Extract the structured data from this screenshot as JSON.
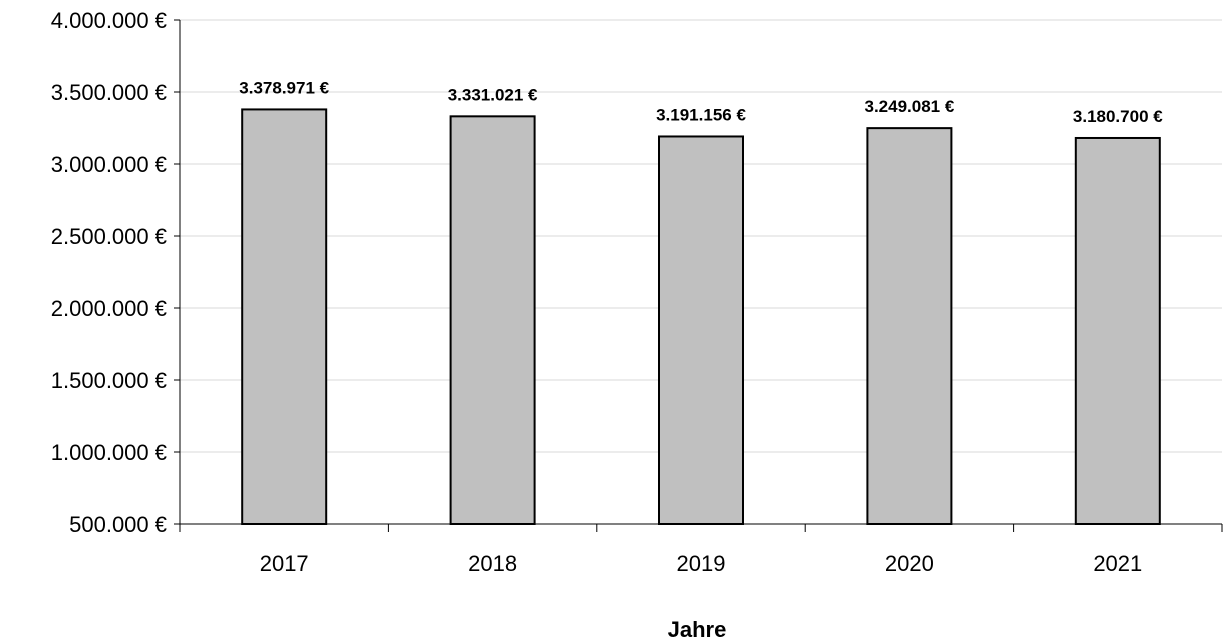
{
  "chart_data": {
    "type": "bar",
    "categories": [
      "2017",
      "2018",
      "2019",
      "2020",
      "2021"
    ],
    "values": [
      3378971,
      3331021,
      3191156,
      3249081,
      3180700
    ],
    "value_labels": [
      "3.378.971 €",
      "3.331.021 €",
      "3.191.156 €",
      "3.249.081 €",
      "3.180.700 €"
    ],
    "xlabel": "Jahre",
    "ylabel": "",
    "ylim": [
      500000,
      4000000
    ],
    "y_ticks": [
      500000,
      1000000,
      1500000,
      2000000,
      2500000,
      3000000,
      3500000,
      4000000
    ],
    "y_tick_labels": [
      "500.000 €",
      "1.000.000 €",
      "1.500.000 €",
      "2.000.000 €",
      "2.500.000 €",
      "3.000.000 €",
      "3.500.000 €",
      "4.000.000 €"
    ],
    "grid": true,
    "legend": "none",
    "colors": {
      "bar_fill": "#c0c0c0",
      "bar_stroke": "#000000",
      "grid": "#d9d9d9"
    }
  }
}
